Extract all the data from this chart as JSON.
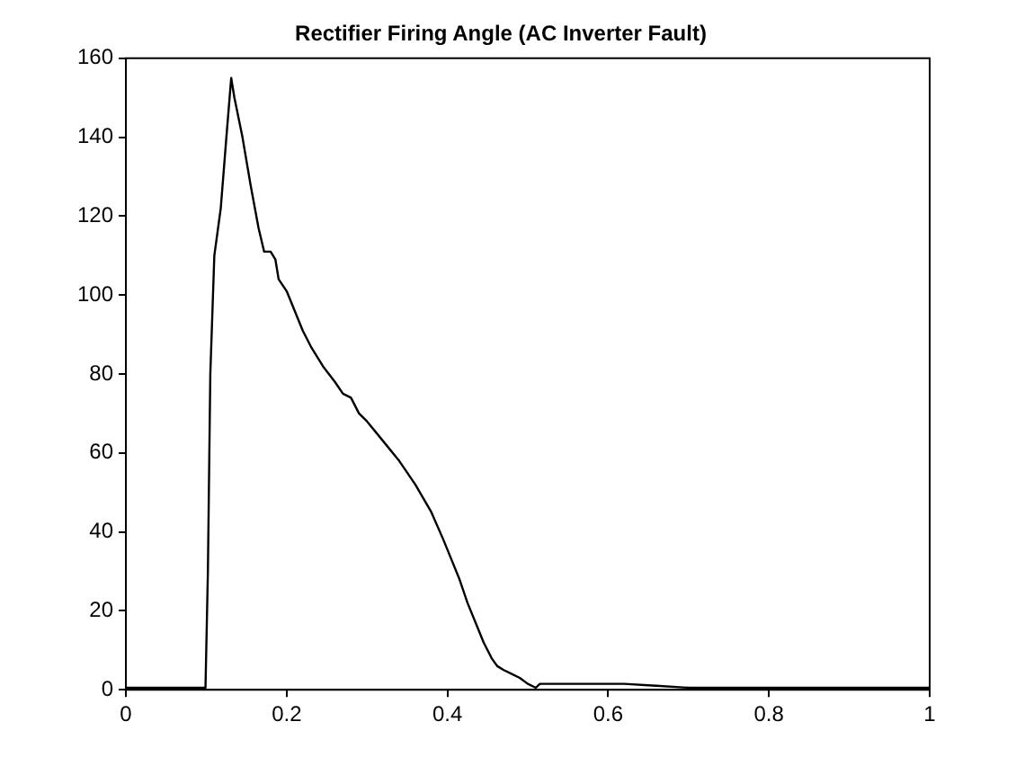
{
  "chart_data": {
    "type": "line",
    "title": "Rectifier Firing Angle (AC Inverter Fault)",
    "x": [
      0,
      0.099,
      0.102,
      0.105,
      0.11,
      0.118,
      0.125,
      0.131,
      0.135,
      0.145,
      0.155,
      0.165,
      0.172,
      0.18,
      0.186,
      0.19,
      0.2,
      0.21,
      0.22,
      0.23,
      0.245,
      0.26,
      0.27,
      0.28,
      0.29,
      0.3,
      0.32,
      0.34,
      0.36,
      0.38,
      0.395,
      0.405,
      0.415,
      0.425,
      0.435,
      0.445,
      0.455,
      0.462,
      0.47,
      0.48,
      0.49,
      0.5,
      0.51,
      0.515,
      0.52,
      0.55,
      0.62,
      0.66,
      0.7,
      0.8,
      0.9,
      1
    ],
    "series": [
      {
        "color": "#000000",
        "values": [
          0.5,
          0.5,
          30,
          80,
          110,
          122,
          140,
          155,
          150,
          140,
          128,
          117,
          111,
          111,
          109,
          104,
          101,
          96,
          91,
          87,
          82,
          78,
          75,
          74,
          70,
          68,
          63,
          58,
          52,
          45,
          38,
          33,
          28,
          22,
          17,
          12,
          8,
          6,
          5,
          4,
          3,
          1.5,
          0.5,
          1.5,
          1.5,
          1.5,
          1.5,
          1,
          0.5,
          0.5,
          0.5,
          0.5
        ]
      }
    ],
    "xlim": [
      0,
      1
    ],
    "xticks": [
      0,
      0.2,
      0.4,
      0.6,
      0.8,
      1
    ],
    "ylim": [
      0,
      160
    ],
    "yticks": [
      0,
      20,
      40,
      60,
      80,
      100,
      120,
      140,
      160
    ],
    "grid": false,
    "legend": false,
    "marker": "none",
    "line_style": "solid"
  }
}
